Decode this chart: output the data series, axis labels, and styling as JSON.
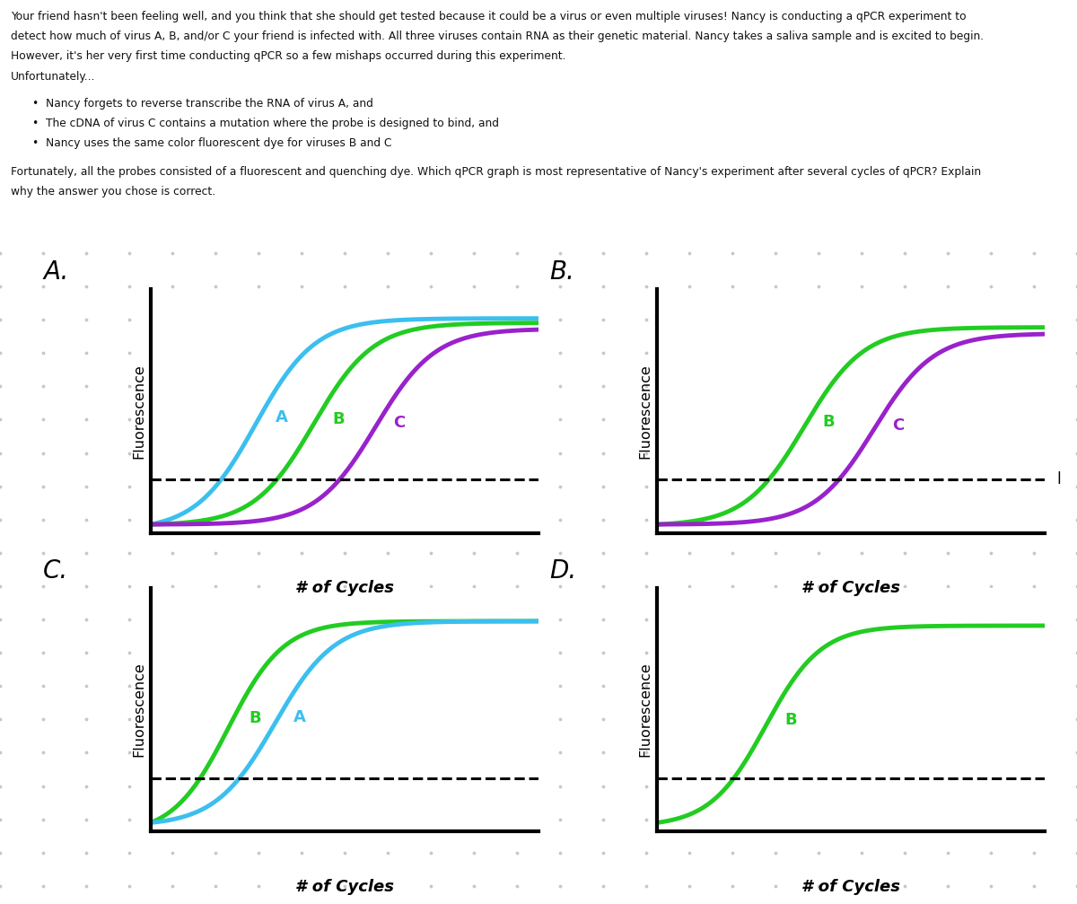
{
  "title_line1": "Your friend hasn't been feeling well, and you think that she should get tested because it could be a virus or even multiple viruses! Nancy is conducting a qPCR experiment to",
  "title_line2": "detect how much of virus A, B, and/or C your friend is infected with. All three viruses contain RNA as their genetic material. Nancy takes a saliva sample and is excited to begin.",
  "title_line3": "However, it's her very first time conducting qPCR so a few mishaps occurred during this experiment.",
  "title_line4": "Unfortunately...",
  "bullet1": "Nancy forgets to reverse transcribe the RNA of virus A, and",
  "bullet2": "The cDNA of virus C contains a mutation where the probe is designed to bind, and",
  "bullet3": "Nancy uses the same color fluorescent dye for viruses B and C",
  "footer1": "Fortunately, all the probes consisted of a fluorescent and quenching dye. Which qPCR graph is most representative of Nancy's experiment after several cycles of qPCR? Explain",
  "footer2": "why the answer you chose is correct.",
  "ylabel": "Fluorescence",
  "xlabel": "# of Cycles",
  "background_color": "#ffffff",
  "dot_color": "#c8c8c8",
  "panel_A": {
    "curves": [
      {
        "label": "A",
        "color": "#3bbfef",
        "ct": 0.27,
        "k": 13,
        "plateau": 0.92
      },
      {
        "label": "B",
        "color": "#22cc22",
        "ct": 0.42,
        "k": 13,
        "plateau": 0.9
      },
      {
        "label": "C",
        "color": "#9922cc",
        "ct": 0.58,
        "k": 13,
        "plateau": 0.87
      }
    ],
    "threshold": 0.2,
    "has_threshold_label": false
  },
  "panel_B": {
    "curves": [
      {
        "label": "B",
        "color": "#22cc22",
        "ct": 0.38,
        "k": 13,
        "plateau": 0.88
      },
      {
        "label": "C",
        "color": "#9922cc",
        "ct": 0.56,
        "k": 13,
        "plateau": 0.85
      }
    ],
    "threshold": 0.2,
    "has_threshold_label": true
  },
  "panel_C": {
    "curves": [
      {
        "label": "B",
        "color": "#22cc22",
        "ct": 0.2,
        "k": 14,
        "plateau": 0.9
      },
      {
        "label": "A",
        "color": "#3bbfef",
        "ct": 0.32,
        "k": 13,
        "plateau": 0.9
      }
    ],
    "threshold": 0.2,
    "has_threshold_label": false
  },
  "panel_D": {
    "curves": [
      {
        "label": "B",
        "color": "#22cc22",
        "ct": 0.28,
        "k": 14,
        "plateau": 0.88
      }
    ],
    "threshold": 0.2,
    "has_threshold_label": false
  }
}
